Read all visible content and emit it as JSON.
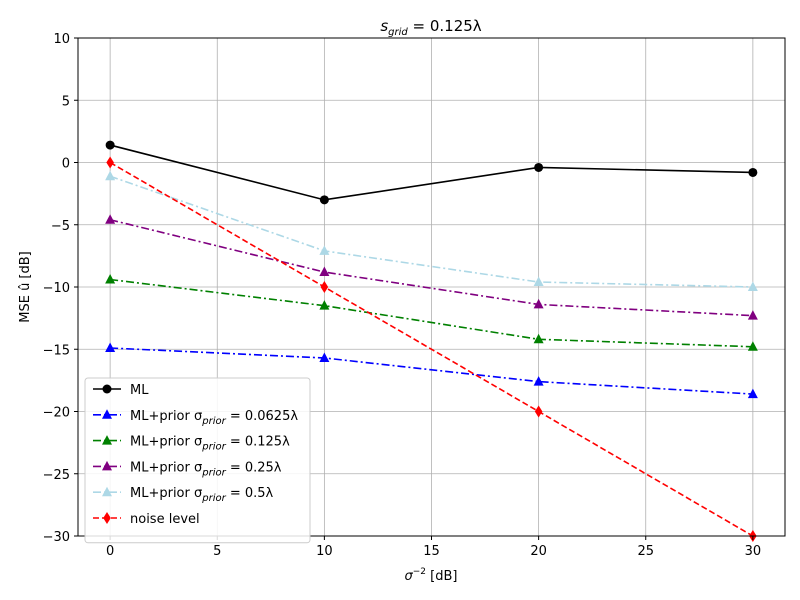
{
  "chart_data": {
    "type": "line",
    "title_main": "s",
    "title_sub": "grid",
    "title_rest": " = 0.125λ",
    "xlabel_main": "σ",
    "xlabel_sup": "−2",
    "xlabel_rest": " [dB]",
    "ylabel": "MSE û [dB]",
    "xlim": [
      -1.5,
      31.5
    ],
    "ylim": [
      -30,
      10
    ],
    "xticks": [
      0,
      5,
      10,
      15,
      20,
      25,
      30
    ],
    "yticks": [
      -30,
      -25,
      -20,
      -15,
      -10,
      -5,
      0,
      5,
      10
    ],
    "grid": true,
    "legend_position": "lower-left",
    "x": [
      0,
      10,
      20,
      30
    ],
    "series": [
      {
        "name_main": "ML",
        "name_sub": "",
        "name_rest": "",
        "color": "#000000",
        "marker": "circle",
        "dash": "solid",
        "values": [
          1.4,
          -3.0,
          -0.4,
          -0.8
        ]
      },
      {
        "name_main": "ML+prior σ",
        "name_sub": "prior",
        "name_rest": " = 0.0625λ",
        "color": "#0000ff",
        "marker": "triangle",
        "dash": "dashdot",
        "values": [
          -14.9,
          -15.7,
          -17.6,
          -18.6
        ]
      },
      {
        "name_main": "ML+prior σ",
        "name_sub": "prior",
        "name_rest": " = 0.125λ",
        "color": "#008000",
        "marker": "triangle",
        "dash": "dashdot",
        "values": [
          -9.4,
          -11.5,
          -14.2,
          -14.8
        ]
      },
      {
        "name_main": "ML+prior σ",
        "name_sub": "prior",
        "name_rest": " = 0.25λ",
        "color": "#800080",
        "marker": "triangle",
        "dash": "dashdot",
        "values": [
          -4.6,
          -8.8,
          -11.4,
          -12.3
        ]
      },
      {
        "name_main": "ML+prior σ",
        "name_sub": "prior",
        "name_rest": " = 0.5λ",
        "color": "#add8e6",
        "marker": "triangle",
        "dash": "dashdot",
        "values": [
          -1.1,
          -7.1,
          -9.6,
          -10.0
        ]
      },
      {
        "name_main": "noise level",
        "name_sub": "",
        "name_rest": "",
        "color": "#ff0000",
        "marker": "diamond",
        "dash": "dashed",
        "values": [
          0,
          -10,
          -20,
          -30
        ]
      }
    ]
  }
}
